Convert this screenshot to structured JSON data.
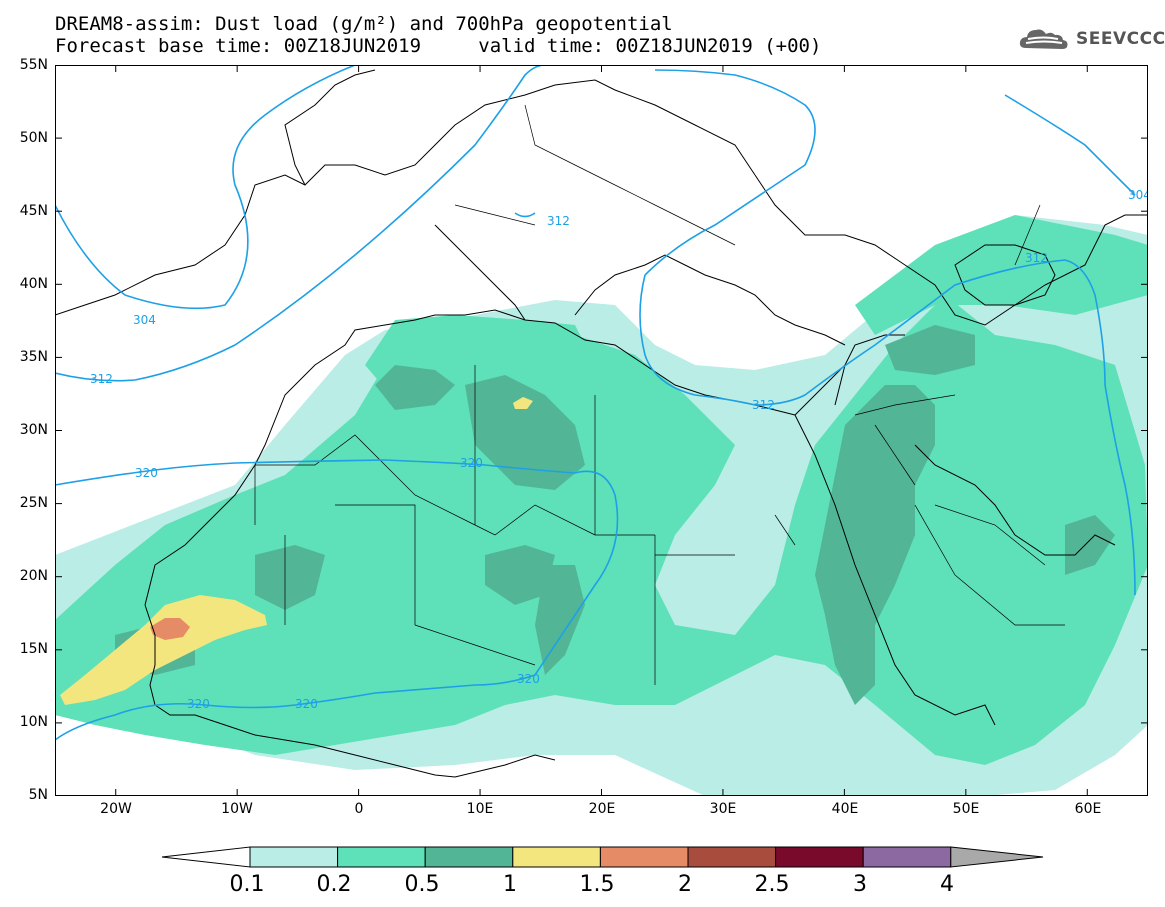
{
  "title": {
    "line1": "DREAM8-assim: Dust load (g/m²) and 700hPa geopotential",
    "base_label": "Forecast base time: 00Z18JUN2019",
    "valid_label": "valid time: 00Z18JUN2019 (+00)"
  },
  "logo": {
    "text": "SEEVCCC",
    "icon": "cloud-icon"
  },
  "map": {
    "lat_labels": [
      "55N",
      "50N",
      "45N",
      "40N",
      "35N",
      "30N",
      "25N",
      "20N",
      "15N",
      "10N",
      "5N"
    ],
    "lon_labels": [
      "20W",
      "10W",
      "0",
      "10E",
      "20E",
      "30E",
      "40E",
      "50E",
      "60E"
    ],
    "lon_range": [
      -25,
      65
    ],
    "lat_range": [
      5,
      55
    ],
    "contour_labels": [
      "304",
      "312",
      "320",
      "312",
      "312",
      "312",
      "304",
      "320",
      "320",
      "320"
    ],
    "colors": {
      "land_border": "#000000",
      "contour": "#1ea0e6"
    }
  },
  "colorbar": {
    "labels": [
      "0.1",
      "0.2",
      "0.5",
      "1",
      "1.5",
      "2",
      "2.5",
      "3",
      "4"
    ],
    "colors": [
      "#ffffff",
      "#b9ede6",
      "#5ee0b8",
      "#52b596",
      "#f3e67f",
      "#e58c66",
      "#a84c3e",
      "#7a0a2c",
      "#8c69a0",
      "#a9a9a9"
    ]
  }
}
